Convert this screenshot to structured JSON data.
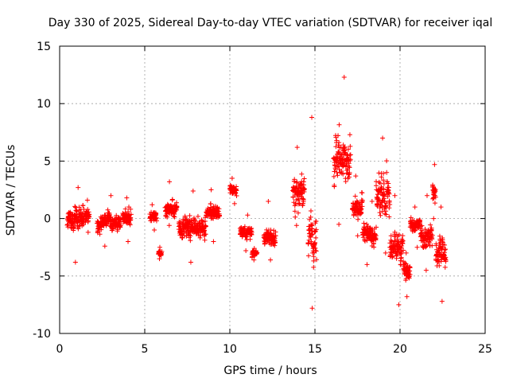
{
  "chart_data": {
    "type": "scatter",
    "title": "Day 330 of 2025, Sidereal Day-to-day VTEC variation (SDTVAR) for receiver iqal",
    "xlabel": "GPS time / hours",
    "ylabel": "SDTVAR / TECUs",
    "xlim": [
      0,
      25
    ],
    "ylim": [
      -10,
      15
    ],
    "xticks": [
      0,
      5,
      10,
      15,
      20,
      25
    ],
    "yticks": [
      -10,
      -5,
      0,
      5,
      10,
      15
    ],
    "grid": true,
    "marker": "+",
    "color": "#ff0000",
    "clusters": [
      {
        "t0": 0.45,
        "t1": 1.45,
        "mean": 0.0,
        "spread": 1.7,
        "min": -3.8,
        "max": 2.7
      },
      {
        "t0": 1.5,
        "t1": 1.75,
        "mean": 0.3,
        "spread": 1.0,
        "min": -1.2,
        "max": 1.6
      },
      {
        "t0": 2.2,
        "t1": 3.6,
        "mean": -0.3,
        "spread": 1.1,
        "min": -2.4,
        "max": 2.0
      },
      {
        "t0": 3.7,
        "t1": 4.2,
        "mean": 0.2,
        "spread": 1.0,
        "min": -2.0,
        "max": 1.8
      },
      {
        "t0": 5.3,
        "t1": 5.7,
        "mean": 0.2,
        "spread": 0.8,
        "min": -1.0,
        "max": 1.2
      },
      {
        "t0": 5.8,
        "t1": 6.0,
        "mean": -3.0,
        "spread": 0.3,
        "min": -3.5,
        "max": -2.5
      },
      {
        "t0": 6.2,
        "t1": 6.9,
        "mean": 0.8,
        "spread": 1.0,
        "min": -0.6,
        "max": 3.2
      },
      {
        "t0": 7.0,
        "t1": 8.6,
        "mean": -0.8,
        "spread": 1.4,
        "min": -3.8,
        "max": 2.4
      },
      {
        "t0": 8.6,
        "t1": 9.4,
        "mean": 0.5,
        "spread": 1.1,
        "min": -2.0,
        "max": 2.5
      },
      {
        "t0": 10.0,
        "t1": 10.4,
        "mean": 2.4,
        "spread": 0.6,
        "min": 1.3,
        "max": 3.5
      },
      {
        "t0": 10.6,
        "t1": 11.3,
        "mean": -1.2,
        "spread": 0.8,
        "min": -2.8,
        "max": 0.3
      },
      {
        "t0": 11.3,
        "t1": 11.6,
        "mean": -3.0,
        "spread": 0.4,
        "min": -3.6,
        "max": -2.6
      },
      {
        "t0": 12.0,
        "t1": 12.7,
        "mean": -1.5,
        "spread": 1.2,
        "min": -3.6,
        "max": 1.5
      },
      {
        "t0": 13.7,
        "t1": 14.4,
        "mean": 2.5,
        "spread": 2.3,
        "min": -0.6,
        "max": 6.2
      },
      {
        "t0": 14.6,
        "t1": 15.1,
        "mean": -2.0,
        "spread": 3.5,
        "min": -7.8,
        "max": 8.8
      },
      {
        "t0": 16.1,
        "t1": 17.1,
        "mean": 5.0,
        "spread": 3.2,
        "min": -0.5,
        "max": 12.3
      },
      {
        "t0": 17.2,
        "t1": 17.8,
        "mean": 1.0,
        "spread": 1.5,
        "min": -1.5,
        "max": 3.7
      },
      {
        "t0": 17.8,
        "t1": 18.6,
        "mean": -1.6,
        "spread": 1.3,
        "min": -4.0,
        "max": 1.5
      },
      {
        "t0": 18.6,
        "t1": 19.4,
        "mean": 2.0,
        "spread": 2.6,
        "min": -3.0,
        "max": 7.0
      },
      {
        "t0": 19.4,
        "t1": 20.2,
        "mean": -2.5,
        "spread": 2.0,
        "min": -7.5,
        "max": 2.0
      },
      {
        "t0": 20.2,
        "t1": 20.6,
        "mean": -4.5,
        "spread": 1.2,
        "min": -6.8,
        "max": -3.0
      },
      {
        "t0": 20.6,
        "t1": 21.2,
        "mean": -0.5,
        "spread": 0.9,
        "min": -2.5,
        "max": 1.0
      },
      {
        "t0": 21.2,
        "t1": 21.9,
        "mean": -1.5,
        "spread": 1.4,
        "min": -4.5,
        "max": 2.0
      },
      {
        "t0": 21.9,
        "t1": 22.1,
        "mean": 2.5,
        "spread": 1.2,
        "min": 0.0,
        "max": 4.7
      },
      {
        "t0": 22.1,
        "t1": 22.7,
        "mean": -3.0,
        "spread": 2.0,
        "min": -7.2,
        "max": 1.0
      }
    ]
  }
}
